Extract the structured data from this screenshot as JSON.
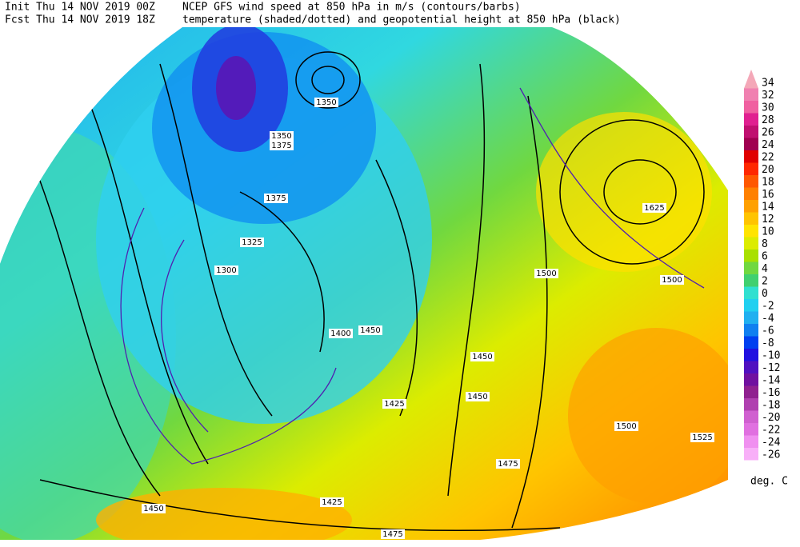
{
  "header": {
    "init": "Init  Thu 14 NOV 2019 00Z",
    "fcst": "Fcst  Thu 14 NOV 2019 18Z",
    "line1": "NCEP GFS wind speed at 850 hPa in m/s (contours/barbs)",
    "line2": "temperature (shaded/dotted) and geopotential height at 850 hPa (black)"
  },
  "colorbar": {
    "levels": [
      34,
      32,
      30,
      28,
      26,
      24,
      22,
      20,
      18,
      16,
      14,
      12,
      10,
      8,
      6,
      4,
      2,
      0,
      -2,
      -4,
      -6,
      -8,
      -10,
      -12,
      -14,
      -16,
      -18,
      -20,
      -22,
      -24,
      -26
    ],
    "colors": [
      "#f4a8b8",
      "#f080b0",
      "#f060a0",
      "#e02090",
      "#c01070",
      "#a00050",
      "#e00000",
      "#ff2800",
      "#ff5800",
      "#ff8000",
      "#ffa000",
      "#ffc400",
      "#ffe400",
      "#dcec00",
      "#a8e000",
      "#70d840",
      "#40d070",
      "#30e0d0",
      "#20d0f0",
      "#20b0f0",
      "#1080f0",
      "#0040f0",
      "#2010e0",
      "#5010c0",
      "#7010a0",
      "#902090",
      "#b040b0",
      "#d060d0",
      "#e070e0",
      "#f090f0",
      "#f8b0f8"
    ],
    "unit": "deg. C"
  },
  "map": {
    "height_labels": [
      1350,
      1375,
      1350,
      1375,
      1325,
      1300,
      1625,
      1500,
      1500,
      1450,
      1425,
      1450,
      1475,
      1525,
      1500,
      1400,
      1450,
      1475,
      1425,
      1450
    ]
  }
}
